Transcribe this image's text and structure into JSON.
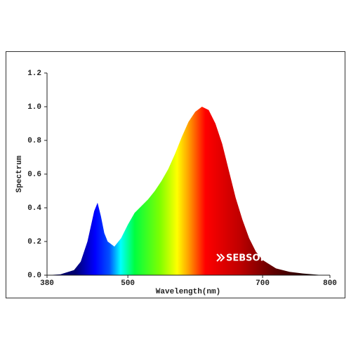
{
  "chart_data": {
    "type": "area",
    "xlabel": "Wavelength(nm)",
    "ylabel": "Spectrum",
    "annotation": "SEBSON",
    "x": [
      380,
      400,
      420,
      430,
      440,
      450,
      455,
      460,
      465,
      470,
      480,
      490,
      500,
      510,
      520,
      530,
      540,
      550,
      560,
      570,
      580,
      590,
      600,
      610,
      620,
      630,
      640,
      650,
      660,
      670,
      680,
      690,
      700,
      720,
      740,
      760,
      790
    ],
    "values": [
      0,
      0.005,
      0.03,
      0.08,
      0.2,
      0.38,
      0.43,
      0.35,
      0.25,
      0.2,
      0.17,
      0.22,
      0.3,
      0.37,
      0.41,
      0.45,
      0.5,
      0.56,
      0.63,
      0.72,
      0.82,
      0.91,
      0.97,
      1.0,
      0.98,
      0.9,
      0.78,
      0.62,
      0.46,
      0.33,
      0.22,
      0.14,
      0.09,
      0.04,
      0.02,
      0.01,
      0
    ],
    "xlim": [
      380,
      800
    ],
    "xticks": [
      380,
      500,
      700,
      800
    ],
    "ylim": [
      0,
      1.2
    ],
    "yticks": [
      {
        "value": 0,
        "label": "0.0"
      },
      0.2,
      0.4,
      0.6,
      0.8,
      {
        "value": 1,
        "label": "1.0"
      },
      1.2
    ]
  }
}
